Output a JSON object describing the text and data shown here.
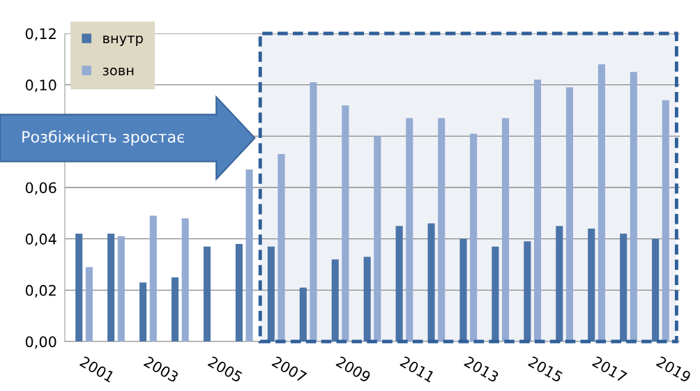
{
  "chart_data": {
    "type": "bar",
    "categories": [
      "2001",
      null,
      "2003",
      null,
      "2005",
      null,
      "2007",
      null,
      "2009",
      null,
      "2011",
      null,
      "2013",
      null,
      "2015",
      null,
      "2017",
      null,
      "2019"
    ],
    "series": [
      {
        "name": "внутр",
        "color": "#4a74a8",
        "values": [
          0.042,
          0.042,
          0.023,
          0.025,
          0.037,
          0.038,
          0.037,
          0.021,
          0.032,
          0.033,
          0.045,
          0.046,
          0.04,
          0.037,
          0.039,
          0.045,
          0.044,
          0.042,
          0.04
        ]
      },
      {
        "name": "зовн",
        "color": "#94abd3",
        "values": [
          0.029,
          0.041,
          0.049,
          0.048,
          null,
          0.067,
          0.073,
          0.101,
          0.092,
          0.08,
          0.087,
          0.087,
          0.081,
          0.087,
          0.102,
          0.099,
          0.108,
          0.105,
          0.094
        ]
      }
    ],
    "ylim": [
      0,
      0.12
    ],
    "yticks": [
      {
        "value": 0,
        "label": "0,00"
      },
      {
        "value": 0.02,
        "label": "0,02"
      },
      {
        "value": 0.04,
        "label": "0,04"
      },
      {
        "value": 0.06,
        "label": "0,06"
      },
      {
        "value": 0.08,
        "label": null
      },
      {
        "value": 0.1,
        "label": "0,10"
      },
      {
        "value": 0.12,
        "label": "0,12"
      }
    ],
    "grid": "y",
    "legend": "top left",
    "bands": [
      {
        "axis": "x",
        "from": "2007",
        "to": "2019",
        "color": "#eef1f6"
      }
    ],
    "annotations": [
      "Розбіжність зростає"
    ]
  }
}
